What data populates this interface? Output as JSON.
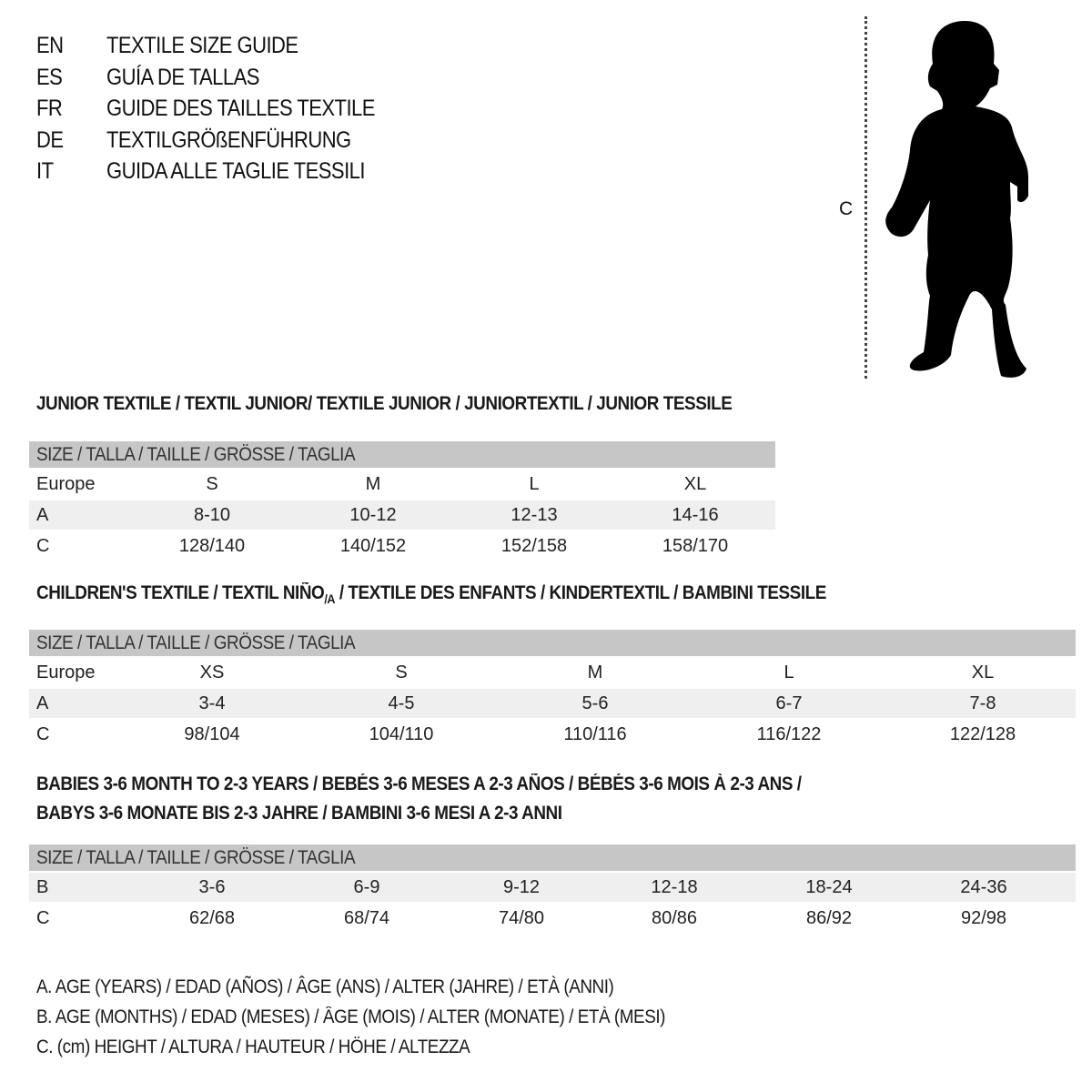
{
  "titles": [
    {
      "code": "EN",
      "text": "TEXTILE SIZE GUIDE"
    },
    {
      "code": "ES",
      "text": "GUÍA DE TALLAS"
    },
    {
      "code": "FR",
      "text": "GUIDE DES TAILLES TEXTILE"
    },
    {
      "code": "DE",
      "text": "TEXTILGRÖßENFÜHRUNG"
    },
    {
      "code": "IT",
      "text": "GUIDA ALLE TAGLIE TESSILI"
    }
  ],
  "figure": {
    "measure_label": "C",
    "icon": "child-silhouette-icon"
  },
  "size_header": "SIZE / TALLA / TAILLE / GRÖSSE / TAGLIA",
  "junior": {
    "title": "JUNIOR TEXTILE / TEXTIL JUNIOR/ TEXTILE JUNIOR / JUNIORTEXTIL / JUNIOR TESSILE",
    "rows": [
      {
        "label": "Europe",
        "values": [
          "S",
          "M",
          "L",
          "XL"
        ]
      },
      {
        "label": "A",
        "values": [
          "8-10",
          "10-12",
          "12-13",
          "14-16"
        ]
      },
      {
        "label": "C",
        "values": [
          "128/140",
          "140/152",
          "152/158",
          "158/170"
        ]
      }
    ]
  },
  "children": {
    "title_a": "CHILDREN'S TEXTILE / TEXTIL NIÑO",
    "title_sub": "/A",
    "title_b": " / TEXTILE DES ENFANTS / KINDERTEXTIL / BAMBINI TESSILE",
    "rows": [
      {
        "label": "Europe",
        "values": [
          "XS",
          "S",
          "M",
          "L",
          "XL"
        ]
      },
      {
        "label": "A",
        "values": [
          "3-4",
          "4-5",
          "5-6",
          "6-7",
          "7-8"
        ]
      },
      {
        "label": "C",
        "values": [
          "98/104",
          "104/110",
          "110/116",
          "116/122",
          "122/128"
        ]
      }
    ]
  },
  "babies": {
    "title_line1": "BABIES 3-6 MONTH TO 2-3 YEARS / BEBÉS 3-6 MESES A 2-3 AÑOS / BÉBÉS 3-6 MOIS À 2-3 ANS /",
    "title_line2": "BABYS 3-6 MONATE BIS 2-3 JAHRE / BAMBINI 3-6 MESI A 2-3 ANNI",
    "rows": [
      {
        "label": "B",
        "values": [
          "3-6",
          "6-9",
          "9-12",
          "12-18",
          "18-24",
          "24-36"
        ]
      },
      {
        "label": "C",
        "values": [
          "62/68",
          "68/74",
          "74/80",
          "80/86",
          "86/92",
          "92/98"
        ]
      }
    ]
  },
  "legend": [
    "A. AGE (YEARS) / EDAD (AÑOS) / ÂGE (ANS) / ALTER (JAHRE) / ETÀ (ANNI)",
    "B. AGE (MONTHS) / EDAD (MESES) / ÂGE (MOIS) / ALTER (MONATE) / ETÀ (MESI)",
    "C. (cm) HEIGHT / ALTURA / HAUTEUR / HÖHE / ALTEZZA"
  ],
  "colors": {
    "header_bar": "#c6c6c6",
    "stripe": "#efefef"
  }
}
